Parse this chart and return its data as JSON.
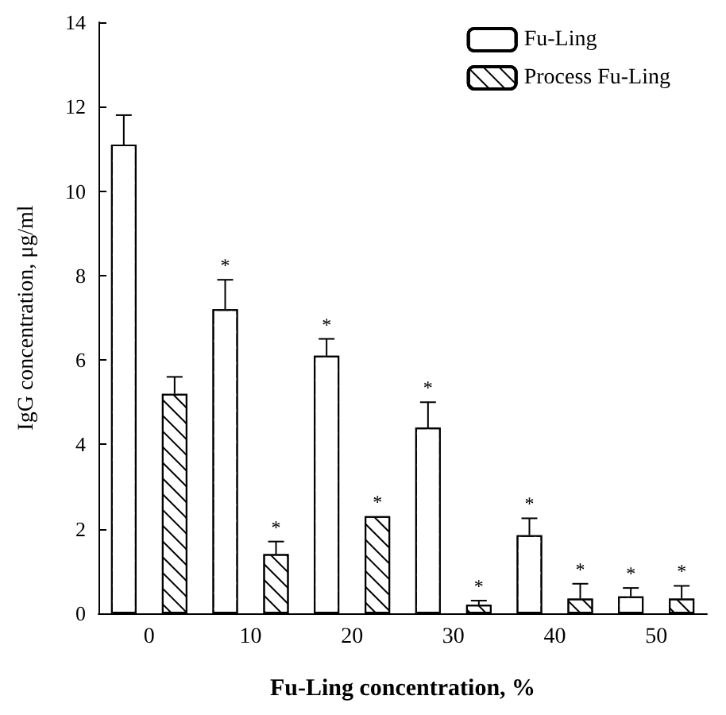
{
  "chart_data": {
    "type": "bar",
    "xlabel": "Fu-Ling concentration, %",
    "ylabel": "IgG concentration, μg/ml",
    "categories": [
      "0",
      "10",
      "20",
      "30",
      "40",
      "50"
    ],
    "series": [
      {
        "name": "Fu-Ling",
        "color": "#ffffff",
        "values": [
          11.1,
          7.2,
          6.1,
          4.4,
          1.85,
          0.4
        ],
        "errors": [
          0.7,
          0.7,
          0.4,
          0.6,
          0.4,
          0.2
        ],
        "value_labels": [
          null,
          "*",
          "*",
          "*",
          "*",
          "*"
        ]
      },
      {
        "name": "Process Fu-Ling",
        "color": "#000000",
        "values": [
          5.2,
          1.4,
          2.3,
          0.2,
          0.35,
          0.35
        ],
        "errors": [
          0.4,
          0.3,
          null,
          0.1,
          0.35,
          0.3
        ],
        "value_labels": [
          null,
          "*",
          "*",
          "*",
          "*",
          "*"
        ]
      }
    ],
    "ylim": [
      0,
      14
    ],
    "yticks": [
      0,
      2,
      4,
      6,
      8,
      10,
      12,
      14
    ],
    "grid": false,
    "legend": "top right"
  }
}
